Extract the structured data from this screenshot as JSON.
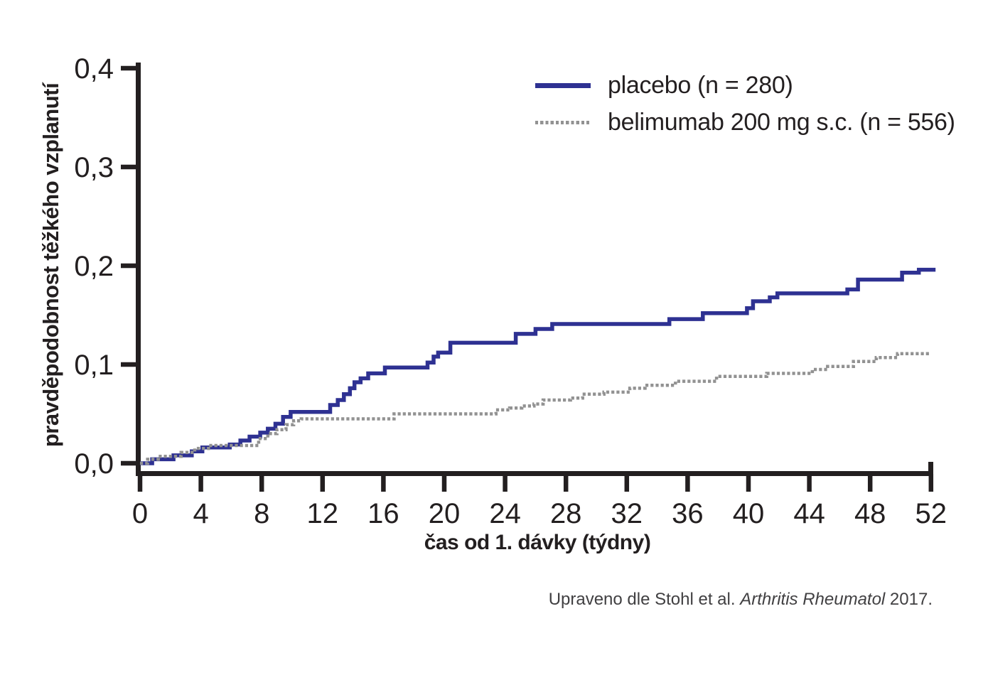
{
  "page": {
    "background": "#ffffff",
    "axis_color": "#231f20"
  },
  "legend": {
    "items": [
      {
        "id": "placebo",
        "label": "placebo (n = 280)",
        "color": "#2e3192",
        "style": "solid"
      },
      {
        "id": "belimumab",
        "label": "belimumab 200 mg s.c. (n = 556)",
        "color": "#929292",
        "style": "dotted"
      }
    ]
  },
  "caption": {
    "prefix": "Upraveno dle Stohl et al. ",
    "journal": "Arthritis Rheumatol",
    "suffix": " 2017."
  },
  "chart_data": {
    "type": "line",
    "subtype": "step-kaplan-meier",
    "title": "",
    "xlabel": "čas od 1. dávky (týdny)",
    "ylabel": "pravděpodobnost těžkého vzplanutí",
    "xlim": [
      0,
      52
    ],
    "ylim": [
      0,
      0.4
    ],
    "grid": false,
    "legend_position": "top-right",
    "x_ticks": [
      0,
      4,
      8,
      12,
      16,
      20,
      24,
      28,
      32,
      36,
      40,
      44,
      48,
      52
    ],
    "x_tick_labels": [
      "0",
      "4",
      "8",
      "12",
      "16",
      "20",
      "24",
      "28",
      "32",
      "36",
      "40",
      "44",
      "48",
      "52"
    ],
    "y_ticks": [
      0.0,
      0.1,
      0.2,
      0.3,
      0.4
    ],
    "y_tick_labels": [
      "0,0",
      "0,1",
      "0,2",
      "0,3",
      "0,4"
    ],
    "series": [
      {
        "id": "placebo",
        "name": "placebo (n = 280)",
        "color": "#2e3192",
        "style": "solid",
        "end_week": 52.3,
        "points": [
          [
            0,
            0
          ],
          [
            0.8,
            0.004
          ],
          [
            2.2,
            0.008
          ],
          [
            3.4,
            0.012
          ],
          [
            4.1,
            0.016
          ],
          [
            5.9,
            0.019
          ],
          [
            6.6,
            0.023
          ],
          [
            7.2,
            0.027
          ],
          [
            7.9,
            0.031
          ],
          [
            8.4,
            0.035
          ],
          [
            8.9,
            0.04
          ],
          [
            9.4,
            0.047
          ],
          [
            9.9,
            0.052
          ],
          [
            12.5,
            0.059
          ],
          [
            13.0,
            0.064
          ],
          [
            13.4,
            0.07
          ],
          [
            13.8,
            0.076
          ],
          [
            14.1,
            0.082
          ],
          [
            14.5,
            0.086
          ],
          [
            15.0,
            0.091
          ],
          [
            16.1,
            0.097
          ],
          [
            18.9,
            0.102
          ],
          [
            19.3,
            0.108
          ],
          [
            19.6,
            0.112
          ],
          [
            20.4,
            0.122
          ],
          [
            24.7,
            0.131
          ],
          [
            26.0,
            0.136
          ],
          [
            27.1,
            0.141
          ],
          [
            34.8,
            0.146
          ],
          [
            37.0,
            0.152
          ],
          [
            39.9,
            0.157
          ],
          [
            40.3,
            0.164
          ],
          [
            41.4,
            0.168
          ],
          [
            41.9,
            0.172
          ],
          [
            46.5,
            0.176
          ],
          [
            47.2,
            0.186
          ],
          [
            50.1,
            0.193
          ],
          [
            51.2,
            0.196
          ]
        ]
      },
      {
        "id": "belimumab",
        "name": "belimumab 200 mg s.c. (n = 556)",
        "color": "#929292",
        "style": "dotted",
        "end_week": 52.0,
        "points": [
          [
            0,
            0
          ],
          [
            0.5,
            0.004
          ],
          [
            1.2,
            0.007
          ],
          [
            2.7,
            0.011
          ],
          [
            3.6,
            0.015
          ],
          [
            4.5,
            0.018
          ],
          [
            7.8,
            0.025
          ],
          [
            8.4,
            0.03
          ],
          [
            9.0,
            0.034
          ],
          [
            9.6,
            0.039
          ],
          [
            10.1,
            0.043
          ],
          [
            10.6,
            0.045
          ],
          [
            16.7,
            0.05
          ],
          [
            23.4,
            0.054
          ],
          [
            24.3,
            0.056
          ],
          [
            25.1,
            0.058
          ],
          [
            25.9,
            0.06
          ],
          [
            26.5,
            0.064
          ],
          [
            28.3,
            0.066
          ],
          [
            29.1,
            0.07
          ],
          [
            30.5,
            0.072
          ],
          [
            32.2,
            0.076
          ],
          [
            33.2,
            0.079
          ],
          [
            35.2,
            0.083
          ],
          [
            37.9,
            0.088
          ],
          [
            41.2,
            0.091
          ],
          [
            44.2,
            0.095
          ],
          [
            45.2,
            0.098
          ],
          [
            46.9,
            0.103
          ],
          [
            48.4,
            0.107
          ],
          [
            49.8,
            0.111
          ]
        ]
      }
    ]
  }
}
